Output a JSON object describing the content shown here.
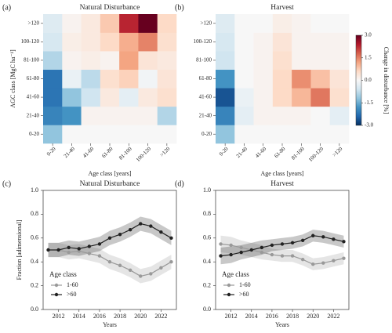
{
  "chart_data": [
    {
      "type": "heatmap",
      "panel_label": "(a)",
      "title": "Natural Disturbance",
      "x_label": "Age class [years]",
      "y_label": "AGC class [MgC ha⁻¹]",
      "x_categories": [
        "0-20",
        "21-40",
        "41-60",
        "61-80",
        "81-100",
        "100-120",
        ">120"
      ],
      "y_categories": [
        "0-20",
        "21-40",
        "41-60",
        "61-80",
        "81-100",
        "100-120",
        ">120"
      ],
      "z": [
        [
          -1.2,
          0.0,
          0.0,
          0.0,
          0.0,
          0.0,
          0.0
        ],
        [
          -2.0,
          -1.8,
          0.1,
          0.1,
          0.1,
          0.1,
          -0.9
        ],
        [
          -2.2,
          -1.2,
          -0.6,
          0.3,
          -0.3,
          0.3,
          0.5
        ],
        [
          -2.2,
          -0.2,
          -0.8,
          0.5,
          0.7,
          -0.1,
          0.4
        ],
        [
          -0.9,
          0.1,
          0.2,
          0.1,
          1.2,
          0.4,
          0.3
        ],
        [
          -0.5,
          0.2,
          0.3,
          0.6,
          1.1,
          1.5,
          0.5
        ],
        [
          -0.4,
          0.1,
          0.3,
          0.8,
          2.3,
          3.0,
          0.6
        ]
      ]
    },
    {
      "type": "heatmap",
      "panel_label": "(b)",
      "title": "Harvest",
      "x_label": "Age class [years]",
      "x_categories": [
        "0-20",
        "21-40",
        "41-60",
        "61-80",
        "81-100",
        "100-120",
        ">120"
      ],
      "y_categories": [
        "0-20",
        "21-40",
        "41-60",
        "61-80",
        "81-100",
        "100-120",
        ">120"
      ],
      "z": [
        [
          -1.2,
          0.0,
          0.0,
          0.0,
          0.0,
          0.0,
          0.0
        ],
        [
          -2.0,
          -0.3,
          0.1,
          0.1,
          0.1,
          0.0,
          -0.3
        ],
        [
          -2.6,
          -0.2,
          0.1,
          0.6,
          1.0,
          1.6,
          0.5
        ],
        [
          -1.8,
          0.0,
          0.1,
          0.6,
          1.4,
          0.9,
          0.4
        ],
        [
          -0.6,
          0.0,
          0.1,
          0.5,
          0.1,
          0.1,
          0.1
        ],
        [
          -0.5,
          0.0,
          0.1,
          0.4,
          0.1,
          0.1,
          0.1
        ],
        [
          -0.4,
          0.0,
          0.0,
          0.2,
          0.1,
          0.0,
          0.0
        ]
      ],
      "colorbar": {
        "label": "Change in disturbance [%]",
        "lim": [
          -3,
          3
        ],
        "ticks": [
          {
            "value": 3,
            "label": "3.0"
          },
          1.5,
          {
            "value": 0,
            "label": "0.0"
          },
          -1.5,
          {
            "value": -3,
            "label": "-3.0"
          }
        ]
      }
    },
    {
      "type": "line",
      "panel_label": "(c)",
      "title": "Natural Disturbance",
      "x_label": "Years",
      "y_label": "Fraction [adimensional]",
      "x": [
        2011,
        2012,
        2013,
        2014,
        2015,
        2016,
        2017,
        2018,
        2019,
        2020,
        2021,
        2022,
        2023
      ],
      "xlim": [
        2010.5,
        2023.5
      ],
      "xticks": [
        2012,
        2014,
        2016,
        2018,
        2020,
        2022
      ],
      "ylim": [
        0,
        1
      ],
      "yticks": [
        {
          "value": 0,
          "label": "0.0"
        },
        0.2,
        0.4,
        0.6,
        0.8,
        {
          "value": 1,
          "label": "1.0"
        }
      ],
      "legend_title": "Age class",
      "legend": "lower left",
      "series": [
        {
          "name": "1-60",
          "color": "#999999",
          "values": [
            0.5,
            0.5,
            0.48,
            0.49,
            0.47,
            0.45,
            0.4,
            0.37,
            0.33,
            0.28,
            0.3,
            0.35,
            0.4
          ],
          "errors": [
            0.06,
            0.06,
            0.06,
            0.06,
            0.06,
            0.06,
            0.06,
            0.06,
            0.06,
            0.06,
            0.06,
            0.06,
            0.06
          ]
        },
        {
          "name": ">60",
          "color": "#222222",
          "values": [
            0.5,
            0.5,
            0.52,
            0.51,
            0.53,
            0.55,
            0.6,
            0.63,
            0.67,
            0.72,
            0.7,
            0.65,
            0.6
          ],
          "errors": [
            0.06,
            0.06,
            0.06,
            0.06,
            0.06,
            0.06,
            0.06,
            0.06,
            0.06,
            0.06,
            0.06,
            0.06,
            0.06
          ]
        }
      ]
    },
    {
      "type": "line",
      "panel_label": "(d)",
      "title": "Harvest",
      "x_label": "Years",
      "x": [
        2011,
        2012,
        2013,
        2014,
        2015,
        2016,
        2017,
        2018,
        2019,
        2020,
        2021,
        2022,
        2023
      ],
      "xlim": [
        2010.5,
        2023.5
      ],
      "xticks": [
        2012,
        2014,
        2016,
        2018,
        2020,
        2022
      ],
      "ylim": [
        0,
        1
      ],
      "yticks": [
        {
          "value": 0,
          "label": "0.0"
        },
        0.2,
        0.4,
        0.6,
        0.8,
        {
          "value": 1,
          "label": "1.0"
        }
      ],
      "legend_title": "Age class",
      "legend": "lower left",
      "series": [
        {
          "name": "1-60",
          "color": "#999999",
          "values": [
            0.55,
            0.54,
            0.52,
            0.5,
            0.48,
            0.46,
            0.45,
            0.45,
            0.42,
            0.38,
            0.39,
            0.41,
            0.43
          ],
          "errors": [
            0.07,
            0.07,
            0.06,
            0.06,
            0.06,
            0.05,
            0.05,
            0.05,
            0.05,
            0.05,
            0.05,
            0.05,
            0.05
          ]
        },
        {
          "name": ">60",
          "color": "#222222",
          "values": [
            0.45,
            0.46,
            0.48,
            0.5,
            0.52,
            0.54,
            0.55,
            0.56,
            0.58,
            0.62,
            0.61,
            0.59,
            0.57
          ],
          "errors": [
            0.07,
            0.07,
            0.06,
            0.06,
            0.06,
            0.05,
            0.05,
            0.05,
            0.05,
            0.05,
            0.05,
            0.05,
            0.05
          ]
        }
      ]
    }
  ]
}
